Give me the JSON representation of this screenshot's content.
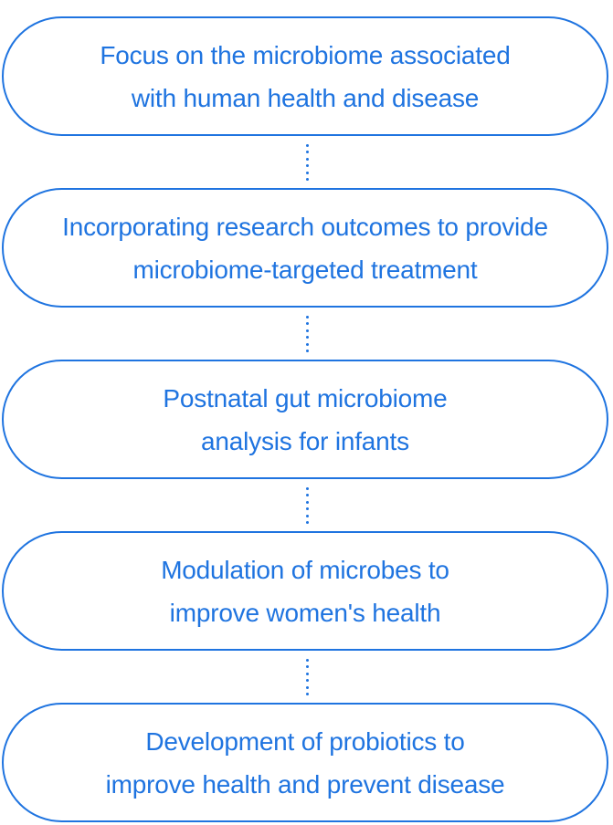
{
  "colors": {
    "accent": "#1f74e0",
    "background": "#ffffff"
  },
  "steps": [
    {
      "line1": "Focus on the microbiome associated",
      "line2": "with human health and disease"
    },
    {
      "line1": "Incorporating research outcomes to provide",
      "line2": "microbiome-targeted treatment"
    },
    {
      "line1": "Postnatal gut microbiome",
      "line2": "analysis for infants"
    },
    {
      "line1": "Modulation of microbes to",
      "line2": "improve women's health"
    },
    {
      "line1": "Development of probiotics to",
      "line2": "improve health and prevent disease"
    }
  ]
}
